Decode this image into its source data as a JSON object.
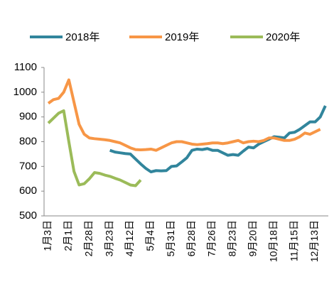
{
  "chart_data": {
    "type": "line",
    "categories": [
      "1月3日",
      null,
      null,
      null,
      "2月1日",
      null,
      null,
      null,
      "2月28日",
      null,
      null,
      null,
      "3月23日",
      null,
      null,
      null,
      "4月12日",
      null,
      null,
      null,
      "5月4日",
      null,
      null,
      null,
      "5月31日",
      null,
      null,
      null,
      "6月28日",
      null,
      null,
      null,
      "7月26日",
      null,
      null,
      null,
      "8月23日",
      null,
      null,
      null,
      "9月20日",
      null,
      null,
      null,
      "10月18日",
      null,
      null,
      null,
      "11月15日",
      null,
      null,
      null,
      "12月13日",
      null,
      null
    ],
    "series": [
      {
        "name": "2018年",
        "color": "#31859c",
        "values": [
          null,
          null,
          null,
          null,
          null,
          null,
          null,
          null,
          null,
          null,
          null,
          null,
          765,
          758,
          755,
          752,
          750,
          730,
          710,
          692,
          678,
          683,
          682,
          683,
          700,
          702,
          718,
          735,
          765,
          770,
          768,
          772,
          765,
          765,
          755,
          745,
          748,
          745,
          762,
          778,
          775,
          790,
          800,
          810,
          820,
          818,
          815,
          835,
          838,
          850,
          865,
          880,
          880,
          900,
          945
        ]
      },
      {
        "name": "2019年",
        "color": "#f79646",
        "values": [
          955,
          970,
          975,
          1000,
          1050,
          960,
          870,
          830,
          815,
          812,
          810,
          808,
          805,
          800,
          795,
          785,
          775,
          768,
          767,
          768,
          770,
          765,
          775,
          785,
          795,
          800,
          800,
          795,
          790,
          788,
          790,
          792,
          795,
          795,
          792,
          795,
          800,
          805,
          795,
          800,
          802,
          800,
          805,
          815,
          815,
          810,
          805,
          805,
          810,
          820,
          835,
          830,
          840,
          850,
          null
        ]
      },
      {
        "name": "2020年",
        "color": "#9bbb59",
        "values": [
          875,
          895,
          915,
          925,
          800,
          680,
          625,
          630,
          650,
          675,
          672,
          665,
          660,
          652,
          645,
          635,
          625,
          622,
          645,
          null,
          null,
          null,
          null,
          null,
          null,
          null,
          null,
          null,
          null,
          null,
          null,
          null,
          null,
          null,
          null,
          null,
          null,
          null,
          null,
          null,
          null,
          null,
          null,
          null,
          null,
          null,
          null,
          null,
          null,
          null,
          null,
          null,
          null,
          null,
          null
        ]
      }
    ],
    "ylim": [
      500,
      1100
    ],
    "yticks": [
      500,
      600,
      700,
      800,
      900,
      1000,
      1100
    ],
    "grid": false,
    "legend": "top"
  }
}
